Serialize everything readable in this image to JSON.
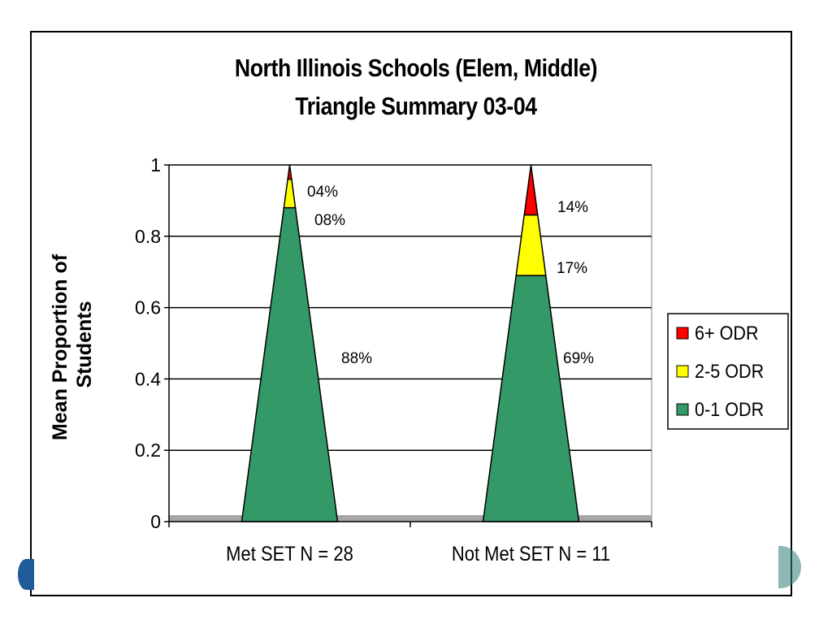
{
  "chart_data": {
    "type": "bar",
    "subtype": "stacked-triangle",
    "title": "North Illinois Schools (Elem, Middle)",
    "subtitle": "Triangle Summary 03-04",
    "ylabel": [
      "Mean Proportion of",
      "Students"
    ],
    "xlabel": "",
    "ylim": [
      0,
      1
    ],
    "yticks": [
      "0",
      "0.2",
      "0.4",
      "0.6",
      "0.8",
      "1"
    ],
    "ytick_values": [
      0,
      0.2,
      0.4,
      0.6,
      0.8,
      1
    ],
    "grid": true,
    "categories": [
      "Met SET N = 28",
      "Not Met SET N = 11"
    ],
    "series": [
      {
        "name": "0-1 ODR",
        "color": "#339966",
        "values": [
          0.88,
          0.69
        ],
        "labels": [
          "88%",
          "69%"
        ]
      },
      {
        "name": "2-5 ODR",
        "color": "#ffff00",
        "values": [
          0.08,
          0.17
        ],
        "labels": [
          "08%",
          "17%"
        ]
      },
      {
        "name": "6+ ODR",
        "color": "#ff0000",
        "values": [
          0.04,
          0.14
        ],
        "labels": [
          "04%",
          "14%"
        ]
      }
    ],
    "legend_order": [
      "6+ ODR",
      "2-5 ODR",
      "0-1 ODR"
    ],
    "legend_position": "right"
  }
}
